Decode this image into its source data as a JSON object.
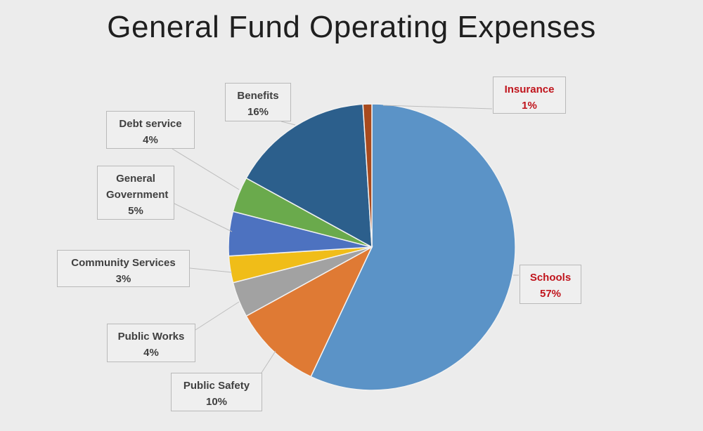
{
  "chart_data": {
    "type": "pie",
    "title": "General Fund Operating Expenses",
    "slices": [
      {
        "label": "Schools",
        "value": 57,
        "pct_label": "57%",
        "color": "#5b93c7",
        "label_color": "#c0141c"
      },
      {
        "label": "Public Safety",
        "value": 10,
        "pct_label": "10%",
        "color": "#df7a34",
        "label_color": "#404040"
      },
      {
        "label": "Public Works",
        "value": 4,
        "pct_label": "4%",
        "color": "#a2a2a2",
        "label_color": "#404040"
      },
      {
        "label": "Community Services",
        "value": 3,
        "pct_label": "3%",
        "color": "#f0bd18",
        "label_color": "#404040"
      },
      {
        "label": "General Government",
        "value": 5,
        "pct_label": "5%",
        "color": "#4d72c0",
        "label_color": "#404040"
      },
      {
        "label": "Debt service",
        "value": 4,
        "pct_label": "4%",
        "color": "#6aaa4c",
        "label_color": "#404040"
      },
      {
        "label": "Benefits",
        "value": 16,
        "pct_label": "16%",
        "color": "#2c5f8c",
        "label_color": "#404040"
      },
      {
        "label": "Insurance",
        "value": 1,
        "pct_label": "1%",
        "color": "#a84a1e",
        "label_color": "#c0141c"
      }
    ]
  }
}
